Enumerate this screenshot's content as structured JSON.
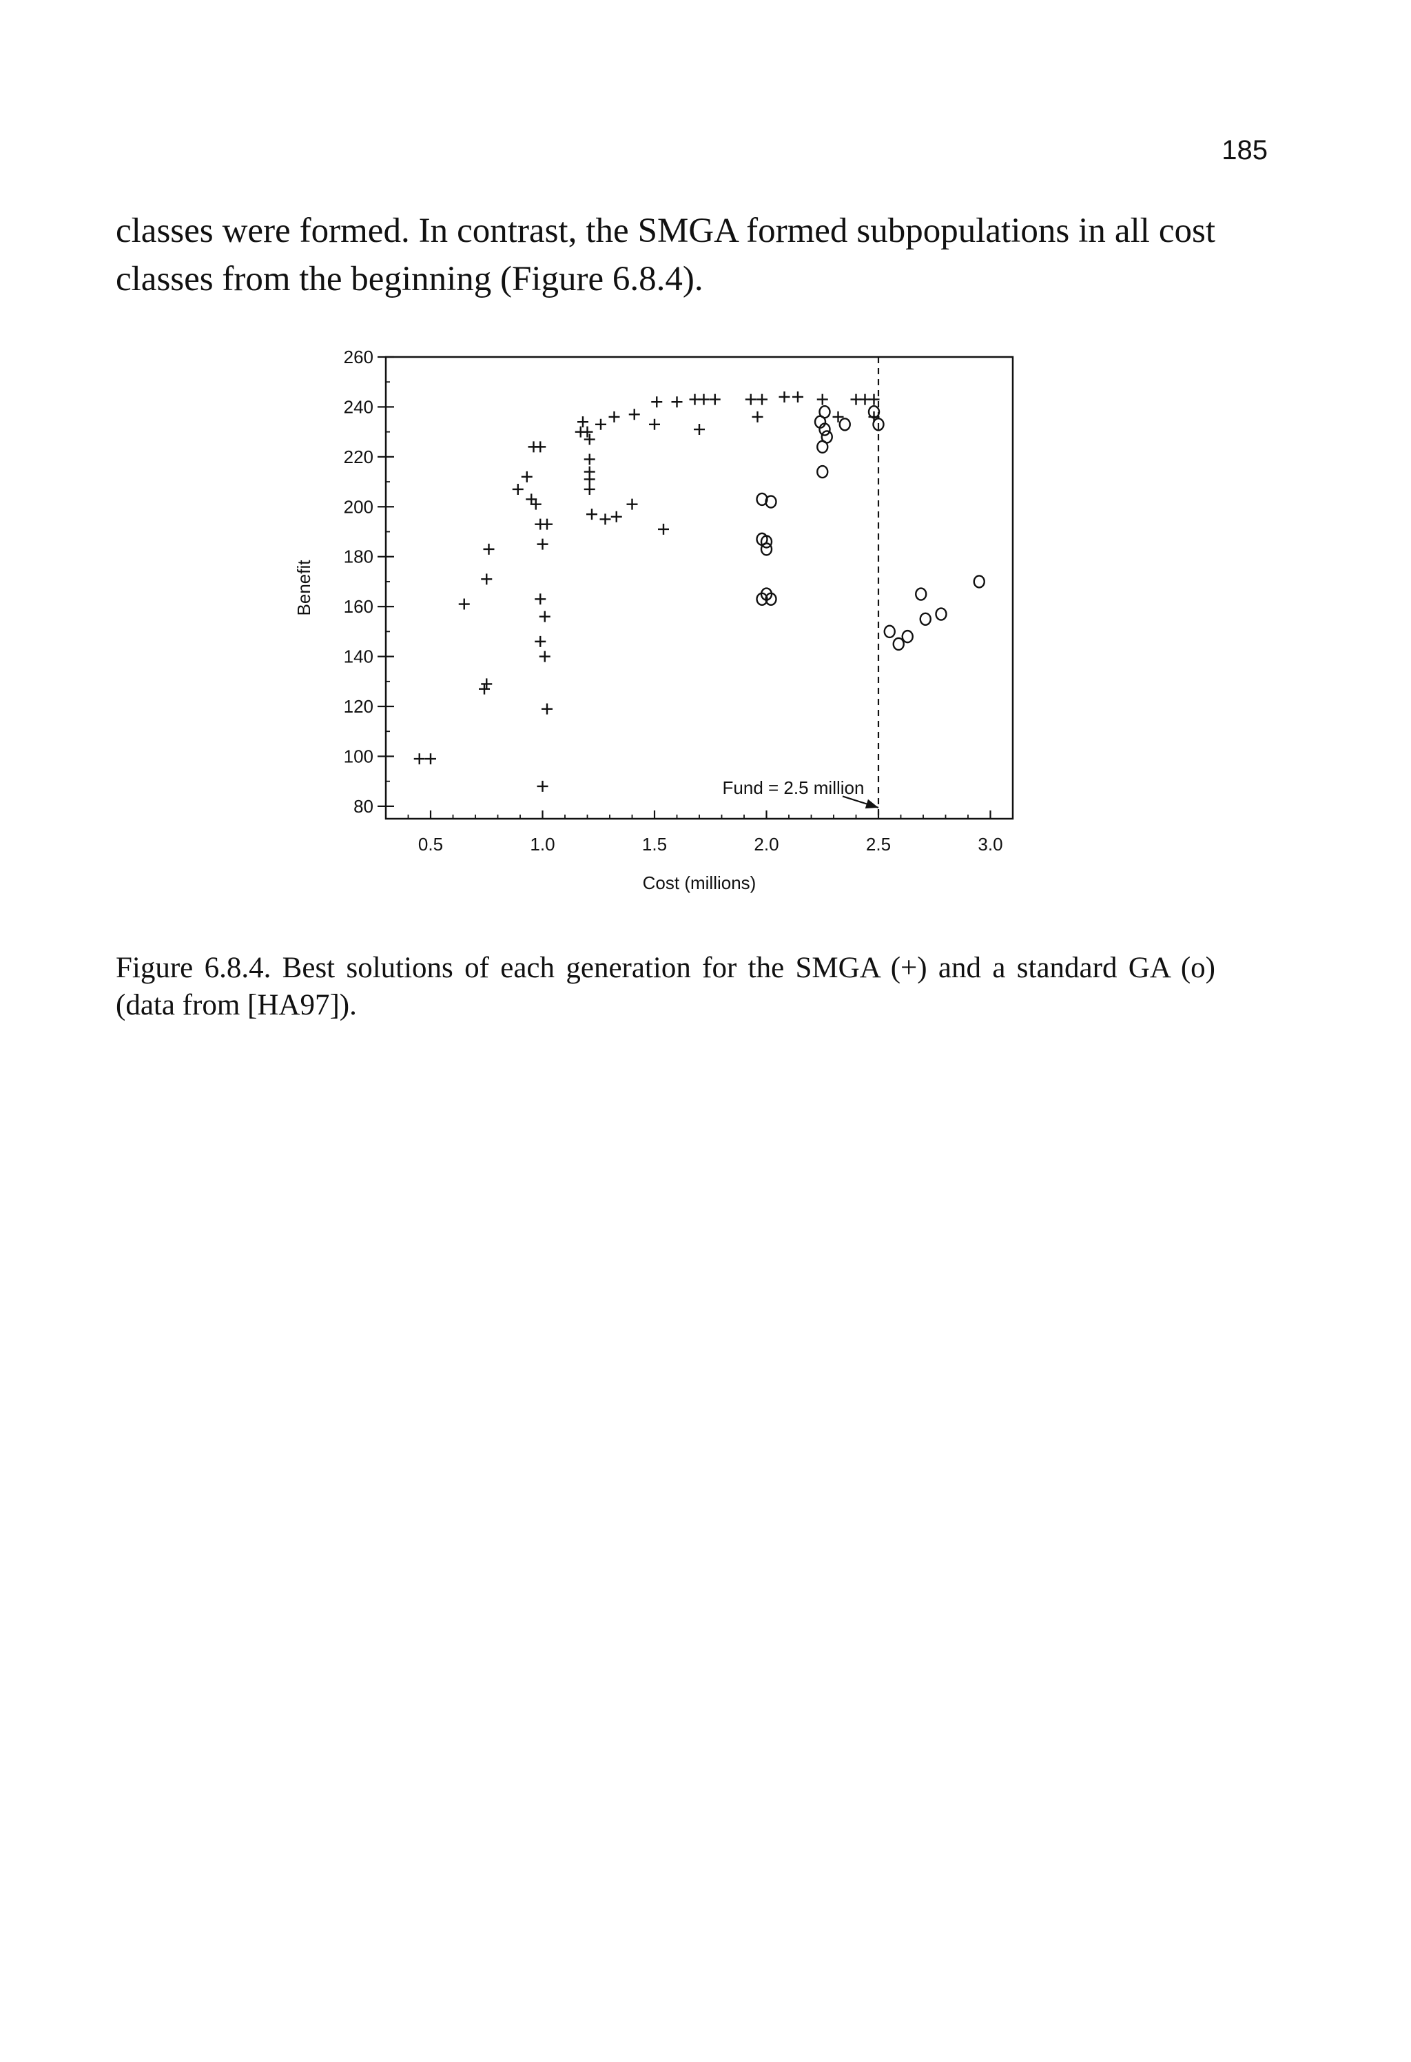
{
  "page": {
    "number": "185",
    "paragraph": "classes were formed. In contrast, the SMGA formed subpopulations in all cost classes from the beginning (Figure 6.8.4).",
    "caption": "Figure 6.8.4. Best solutions of each generation for the SMGA (+) and a standard GA (o) (data from [HA97])."
  },
  "chart_data": {
    "type": "scatter",
    "xlabel": "Cost (millions)",
    "ylabel": "Benefit",
    "xlim": [
      0.3,
      3.1
    ],
    "ylim": [
      75,
      260
    ],
    "xticks": [
      0.5,
      1.0,
      1.5,
      2.0,
      2.5,
      3.0
    ],
    "xtick_labels": [
      "0.5",
      "1.0",
      "1.5",
      "2.0",
      "2.5",
      "3.0"
    ],
    "yticks": [
      80,
      100,
      120,
      140,
      160,
      180,
      200,
      220,
      240,
      260
    ],
    "ytick_labels": [
      "80",
      "100",
      "120",
      "140",
      "160",
      "180",
      "200",
      "220",
      "240",
      "260"
    ],
    "grid": false,
    "reference_line": {
      "x": 2.5,
      "style": "dashed"
    },
    "annotation": {
      "text": "Fund = 2.5 million",
      "points_to": [
        2.5,
        80
      ]
    },
    "series": [
      {
        "marker": "+",
        "points": [
          [
            0.45,
            99
          ],
          [
            0.5,
            99
          ],
          [
            0.65,
            161
          ],
          [
            0.74,
            127
          ],
          [
            0.75,
            129
          ],
          [
            0.75,
            171
          ],
          [
            0.76,
            183
          ],
          [
            0.89,
            207
          ],
          [
            0.93,
            212
          ],
          [
            0.96,
            224
          ],
          [
            0.99,
            224
          ],
          [
            0.95,
            203
          ],
          [
            0.97,
            201
          ],
          [
            0.99,
            193
          ],
          [
            1.02,
            193
          ],
          [
            1.0,
            185
          ],
          [
            1.0,
            88
          ],
          [
            0.99,
            163
          ],
          [
            1.01,
            156
          ],
          [
            0.99,
            146
          ],
          [
            1.01,
            140
          ],
          [
            1.02,
            119
          ],
          [
            1.17,
            230
          ],
          [
            1.18,
            234
          ],
          [
            1.2,
            230
          ],
          [
            1.21,
            227
          ],
          [
            1.21,
            219
          ],
          [
            1.21,
            214
          ],
          [
            1.21,
            211
          ],
          [
            1.21,
            207
          ],
          [
            1.22,
            197
          ],
          [
            1.28,
            195
          ],
          [
            1.33,
            196
          ],
          [
            1.4,
            201
          ],
          [
            1.26,
            233
          ],
          [
            1.32,
            236
          ],
          [
            1.41,
            237
          ],
          [
            1.5,
            233
          ],
          [
            1.51,
            242
          ],
          [
            1.6,
            242
          ],
          [
            1.68,
            243
          ],
          [
            1.72,
            243
          ],
          [
            1.77,
            243
          ],
          [
            1.7,
            231
          ],
          [
            1.54,
            191
          ],
          [
            1.93,
            243
          ],
          [
            1.98,
            243
          ],
          [
            1.96,
            236
          ],
          [
            2.08,
            244
          ],
          [
            2.14,
            244
          ],
          [
            2.25,
            243
          ],
          [
            2.32,
            236
          ],
          [
            2.4,
            243
          ],
          [
            2.44,
            243
          ],
          [
            2.48,
            236
          ],
          [
            2.48,
            243
          ]
        ]
      },
      {
        "marker": "o",
        "points": [
          [
            1.98,
            203
          ],
          [
            2.02,
            202
          ],
          [
            1.98,
            187
          ],
          [
            2.0,
            186
          ],
          [
            2.0,
            183
          ],
          [
            1.98,
            163
          ],
          [
            2.0,
            165
          ],
          [
            2.02,
            163
          ],
          [
            2.26,
            238
          ],
          [
            2.24,
            234
          ],
          [
            2.26,
            231
          ],
          [
            2.27,
            228
          ],
          [
            2.25,
            224
          ],
          [
            2.25,
            214
          ],
          [
            2.35,
            233
          ],
          [
            2.48,
            238
          ],
          [
            2.5,
            233
          ],
          [
            2.55,
            150
          ],
          [
            2.59,
            145
          ],
          [
            2.63,
            148
          ],
          [
            2.69,
            165
          ],
          [
            2.71,
            155
          ],
          [
            2.78,
            157
          ],
          [
            2.95,
            170
          ]
        ]
      }
    ]
  }
}
